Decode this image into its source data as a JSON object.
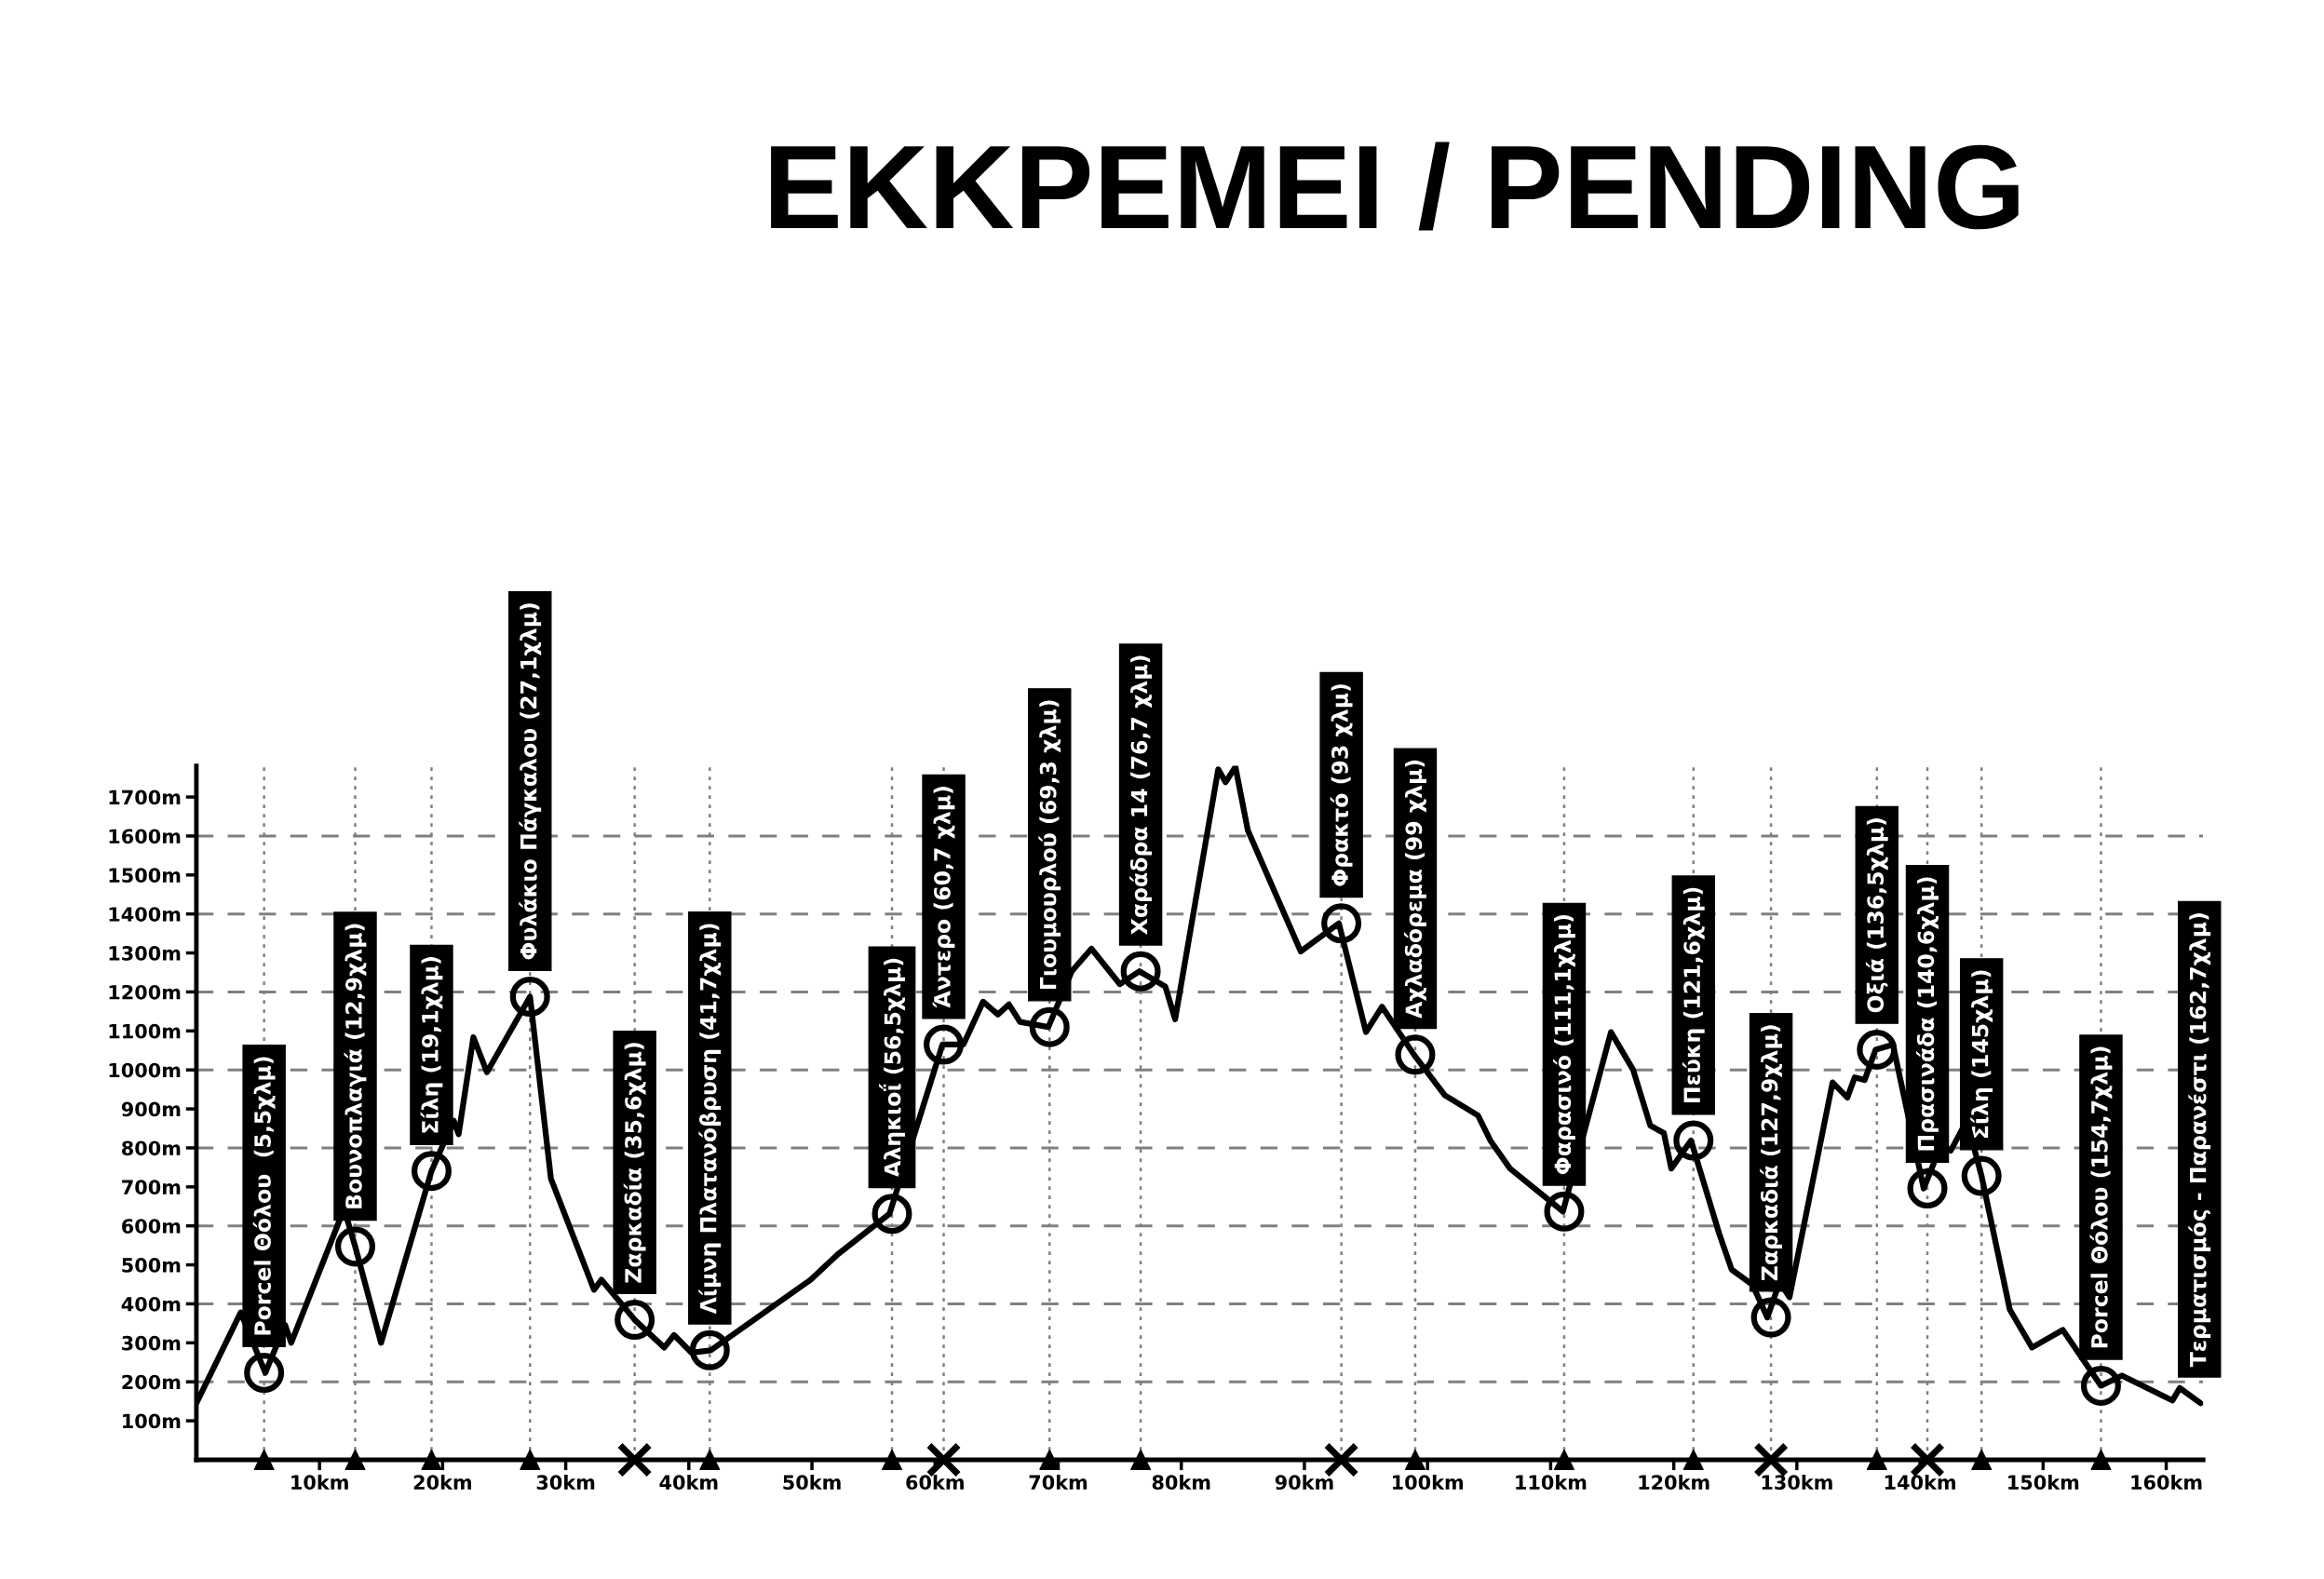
{
  "chart_data": {
    "type": "line",
    "title": "ΕΚΚΡΕΜΕΙ / PENDING",
    "xlim": [
      0,
      163
    ],
    "ylim": [
      0,
      1780
    ],
    "xticks": [
      {
        "value": 10,
        "label": "10km"
      },
      {
        "value": 20,
        "label": "20km"
      },
      {
        "value": 30,
        "label": "30km"
      },
      {
        "value": 40,
        "label": "40km"
      },
      {
        "value": 50,
        "label": "50km"
      },
      {
        "value": 60,
        "label": "60km"
      },
      {
        "value": 70,
        "label": "70km"
      },
      {
        "value": 80,
        "label": "80km"
      },
      {
        "value": 90,
        "label": "90km"
      },
      {
        "value": 100,
        "label": "100km"
      },
      {
        "value": 110,
        "label": "110km"
      },
      {
        "value": 120,
        "label": "120km"
      },
      {
        "value": 130,
        "label": "130km"
      },
      {
        "value": 140,
        "label": "140km"
      },
      {
        "value": 150,
        "label": "150km"
      },
      {
        "value": 160,
        "label": "160km"
      }
    ],
    "yticks": [
      {
        "value": 100,
        "label": "100m"
      },
      {
        "value": 200,
        "label": "200m"
      },
      {
        "value": 300,
        "label": "300m"
      },
      {
        "value": 400,
        "label": "400m"
      },
      {
        "value": 500,
        "label": "500m"
      },
      {
        "value": 600,
        "label": "600m"
      },
      {
        "value": 700,
        "label": "700m"
      },
      {
        "value": 800,
        "label": "800m"
      },
      {
        "value": 900,
        "label": "900m"
      },
      {
        "value": 1000,
        "label": "1000m"
      },
      {
        "value": 1100,
        "label": "1100m"
      },
      {
        "value": 1200,
        "label": "1200m"
      },
      {
        "value": 1300,
        "label": "1300m"
      },
      {
        "value": 1400,
        "label": "1400m"
      },
      {
        "value": 1500,
        "label": "1500m"
      },
      {
        "value": 1600,
        "label": "1600m"
      },
      {
        "value": 1700,
        "label": "1700m"
      }
    ],
    "grid": false,
    "legend": false,
    "series": [
      {
        "color": "#000000",
        "marker": "none",
        "line_style": "solid",
        "x": [
          0,
          3.6,
          5.6,
          7.2,
          7.7,
          12.0,
          12.9,
          15.0,
          19.1,
          20.9,
          21.3,
          22.5,
          23.6,
          27.1,
          28.8,
          32.3,
          32.9,
          35.6,
          38.0,
          38.8,
          40.2,
          41.8,
          49.9,
          52.1,
          56.3,
          60.6,
          62.3,
          63.9,
          65.1,
          66.0,
          66.9,
          69.2,
          71.1,
          72.7,
          75.0,
          76.6,
          78.7,
          79.5,
          83.0,
          83.6,
          84.4,
          85.4,
          89.7,
          92.8,
          95.0,
          96.3,
          98.9,
          101.4,
          104.1,
          105.1,
          106.7,
          111.0,
          114.9,
          116.7,
          118.1,
          119.2,
          119.8,
          121.4,
          123.7,
          124.7,
          126.4,
          127.6,
          128.6,
          129.4,
          132.9,
          134.1,
          134.7,
          135.5,
          136.4,
          137.8,
          140.3,
          141.7,
          142.5,
          143.8,
          145.0,
          147.3,
          149.1,
          151.6,
          154.7,
          156.4,
          160.5,
          161.1,
          162.8
        ],
        "values": [
          145,
          378,
          223,
          346,
          300,
          644,
          547,
          300,
          741,
          870,
          835,
          1084,
          994,
          1188,
          721,
          436,
          462,
          359,
          288,
          320,
          275,
          281,
          462,
          527,
          631,
          1065,
          1065,
          1175,
          1142,
          1168,
          1123,
          1110,
          1253,
          1311,
          1220,
          1253,
          1214,
          1130,
          1771,
          1738,
          1777,
          1615,
          1304,
          1376,
          1097,
          1162,
          1039,
          935,
          883,
          819,
          747,
          637,
          1097,
          1000,
          857,
          838,
          747,
          819,
          579,
          488,
          449,
          365,
          456,
          417,
          968,
          929,
          981,
          974,
          1052,
          1065,
          696,
          806,
          793,
          870,
          728,
          385,
          288,
          333,
          190,
          216,
          152,
          184,
          145
        ]
      },
      {
        "type": "scatter",
        "color": "#000000",
        "marker": "circle",
        "x": [
          5.5,
          12.9,
          19.1,
          27.1,
          35.6,
          41.7,
          56.5,
          60.7,
          69.3,
          76.7,
          93,
          99,
          111.1,
          121.6,
          127.9,
          136.5,
          140.6,
          145,
          154.7
        ],
        "values": [
          223,
          547,
          741,
          1188,
          359,
          281,
          631,
          1065,
          1110,
          1253,
          1376,
          1039,
          637,
          819,
          365,
          1052,
          696,
          728,
          190
        ]
      },
      {
        "type": "scatter",
        "color": "#000000",
        "marker": "triangle",
        "x": [
          5.5,
          12.9,
          19.1,
          27.1,
          41.7,
          56.5,
          69.3,
          76.7,
          99,
          111.1,
          121.6,
          136.5,
          145,
          154.7
        ],
        "values": [
          0,
          0,
          0,
          0,
          0,
          0,
          0,
          0,
          0,
          0,
          0,
          0,
          0,
          0
        ]
      },
      {
        "type": "scatter",
        "color": "#000000",
        "marker": "cross",
        "x": [
          35.6,
          60.7,
          93,
          127.9,
          140.6
        ],
        "values": [
          0,
          0,
          0,
          0,
          0
        ]
      }
    ],
    "ref_lines": [
      {
        "axis": "y",
        "value": 200,
        "line_style": "dashed",
        "color": "#808080"
      },
      {
        "axis": "y",
        "value": 400,
        "line_style": "dashed",
        "color": "#808080"
      },
      {
        "axis": "y",
        "value": 600,
        "line_style": "dashed",
        "color": "#808080"
      },
      {
        "axis": "y",
        "value": 800,
        "line_style": "dashed",
        "color": "#808080"
      },
      {
        "axis": "y",
        "value": 1000,
        "line_style": "dashed",
        "color": "#808080"
      },
      {
        "axis": "y",
        "value": 1200,
        "line_style": "dashed",
        "color": "#808080"
      },
      {
        "axis": "y",
        "value": 1400,
        "line_style": "dashed",
        "color": "#808080"
      },
      {
        "axis": "y",
        "value": 1600,
        "line_style": "dashed",
        "color": "#808080"
      },
      {
        "axis": "x",
        "value": 5.5,
        "line_style": "dotted",
        "color": "#808080"
      },
      {
        "axis": "x",
        "value": 12.9,
        "line_style": "dotted",
        "color": "#808080"
      },
      {
        "axis": "x",
        "value": 19.1,
        "line_style": "dotted",
        "color": "#808080"
      },
      {
        "axis": "x",
        "value": 27.1,
        "line_style": "dotted",
        "color": "#808080"
      },
      {
        "axis": "x",
        "value": 35.6,
        "line_style": "dotted",
        "color": "#808080"
      },
      {
        "axis": "x",
        "value": 41.7,
        "line_style": "dotted",
        "color": "#808080"
      },
      {
        "axis": "x",
        "value": 56.5,
        "line_style": "dotted",
        "color": "#808080"
      },
      {
        "axis": "x",
        "value": 60.7,
        "line_style": "dotted",
        "color": "#808080"
      },
      {
        "axis": "x",
        "value": 69.3,
        "line_style": "dotted",
        "color": "#808080"
      },
      {
        "axis": "x",
        "value": 76.7,
        "line_style": "dotted",
        "color": "#808080"
      },
      {
        "axis": "x",
        "value": 93,
        "line_style": "dotted",
        "color": "#808080"
      },
      {
        "axis": "x",
        "value": 99,
        "line_style": "dotted",
        "color": "#808080"
      },
      {
        "axis": "x",
        "value": 111.1,
        "line_style": "dotted",
        "color": "#808080"
      },
      {
        "axis": "x",
        "value": 121.6,
        "line_style": "dotted",
        "color": "#808080"
      },
      {
        "axis": "x",
        "value": 127.9,
        "line_style": "dotted",
        "color": "#808080"
      },
      {
        "axis": "x",
        "value": 136.5,
        "line_style": "dotted",
        "color": "#808080"
      },
      {
        "axis": "x",
        "value": 140.6,
        "line_style": "dotted",
        "color": "#808080"
      },
      {
        "axis": "x",
        "value": 145,
        "line_style": "dotted",
        "color": "#808080"
      },
      {
        "axis": "x",
        "value": 154.7,
        "line_style": "dotted",
        "color": "#808080"
      }
    ],
    "annotations": [
      {
        "text": "Porcel Θόλου  (5,5χλμ)",
        "x": 5.5,
        "y": 223
      },
      {
        "text": "Βουνοπλαγιά (12,9χλμ)",
        "x": 12.9,
        "y": 547
      },
      {
        "text": "Σίλη (19,1χλμ)",
        "x": 19.1,
        "y": 741
      },
      {
        "text": "Φυλάκιο Πάγκαλου (27,1χλμ)",
        "x": 27.1,
        "y": 1188
      },
      {
        "text": "Ζαρκαδία (35,6χλμ)",
        "x": 35.6,
        "y": 359
      },
      {
        "text": "Λίμνη Πλατανόβρυση (41,7χλμ)",
        "x": 41.7,
        "y": 281
      },
      {
        "text": "Αληκιοΐ (56,5χλμ)",
        "x": 56.5,
        "y": 631
      },
      {
        "text": "Άντερο (60,7 χλμ)",
        "x": 60.7,
        "y": 1065
      },
      {
        "text": "Γιουμουρλού (69,3 χλμ)",
        "x": 69.3,
        "y": 1110
      },
      {
        "text": "Χαράδρα 14 (76,7 χλμ)",
        "x": 76.7,
        "y": 1253
      },
      {
        "text": "Φρακτό (93 χλμ)",
        "x": 93,
        "y": 1376
      },
      {
        "text": "Αχλαδόρεμα (99 χλμ)",
        "x": 99,
        "y": 1039
      },
      {
        "text": "Φαρασινό (111,1χλμ)",
        "x": 111.1,
        "y": 637
      },
      {
        "text": "Πεύκη (121,6χλμ)",
        "x": 121.6,
        "y": 819
      },
      {
        "text": "Ζαρκαδιά (127,9χλμ)",
        "x": 127.9,
        "y": 365
      },
      {
        "text": "Οξιά (136,5χλμ)",
        "x": 136.5,
        "y": 1052
      },
      {
        "text": "Πρασινάδα (140,6χλμ)",
        "x": 140.6,
        "y": 696
      },
      {
        "text": "Σίλη (145χλμ)",
        "x": 145,
        "y": 728
      },
      {
        "text": "Porcel Θόλου (154,7χλμ)",
        "x": 154.7,
        "y": 190
      },
      {
        "text": "Τερματισμός - Παρανέστι (162,7χλμ)",
        "x": 162.7,
        "y": 145
      }
    ]
  }
}
